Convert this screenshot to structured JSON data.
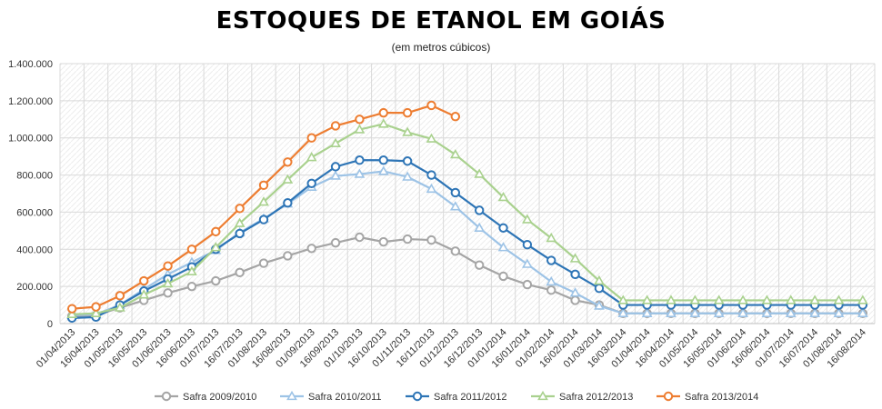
{
  "chart_data": {
    "type": "line",
    "title": "ESTOQUES DE ETANOL EM GOIÁS",
    "subtitle": "(em metros cúbicos)",
    "xlabel": "",
    "ylabel": "",
    "ylim": [
      0,
      1400000
    ],
    "y_ticks": [
      0,
      200000,
      400000,
      600000,
      800000,
      1000000,
      1200000,
      1400000
    ],
    "y_tick_labels": [
      "0",
      "200.000",
      "400.000",
      "600.000",
      "800.000",
      "1.000.000",
      "1.200.000",
      "1.400.000"
    ],
    "grid": true,
    "legend_position": "bottom",
    "categories": [
      "01/04/2013",
      "16/04/2013",
      "01/05/2013",
      "16/05/2013",
      "01/06/2013",
      "16/06/2013",
      "01/07/2013",
      "16/07/2013",
      "01/08/2013",
      "16/08/2013",
      "01/09/2013",
      "16/09/2013",
      "01/10/2013",
      "16/10/2013",
      "01/11/2013",
      "16/11/2013",
      "01/12/2013",
      "16/12/2013",
      "01/01/2014",
      "16/01/2014",
      "01/02/2014",
      "16/02/2014",
      "01/03/2014",
      "16/03/2014",
      "01/04/2014",
      "16/04/2014",
      "01/05/2014",
      "16/05/2014",
      "01/06/2014",
      "16/06/2014",
      "01/07/2014",
      "16/07/2014",
      "01/08/2014",
      "16/08/2014"
    ],
    "series": [
      {
        "name": "Safra 2009/2010",
        "color": "#a5a5a5",
        "marker": "circle",
        "values": [
          40000,
          45000,
          85000,
          125000,
          165000,
          200000,
          230000,
          275000,
          325000,
          365000,
          405000,
          435000,
          465000,
          440000,
          455000,
          450000,
          390000,
          315000,
          255000,
          210000,
          180000,
          125000,
          100000,
          55000,
          55000,
          55000,
          55000,
          55000,
          55000,
          55000,
          55000,
          55000,
          55000,
          55000
        ]
      },
      {
        "name": "Safra 2010/2011",
        "color": "#9dc3e6",
        "marker": "triangle",
        "values": [
          45000,
          50000,
          100000,
          185000,
          265000,
          330000,
          395000,
          490000,
          565000,
          645000,
          735000,
          795000,
          805000,
          820000,
          790000,
          725000,
          630000,
          515000,
          410000,
          320000,
          225000,
          165000,
          95000,
          55000,
          55000,
          55000,
          55000,
          55000,
          55000,
          55000,
          55000,
          55000,
          55000,
          55000
        ]
      },
      {
        "name": "Safra 2011/2012",
        "color": "#2e75b6",
        "marker": "circle",
        "values": [
          30000,
          35000,
          100000,
          175000,
          240000,
          305000,
          400000,
          485000,
          560000,
          650000,
          755000,
          845000,
          880000,
          880000,
          875000,
          800000,
          705000,
          610000,
          515000,
          425000,
          340000,
          265000,
          190000,
          100000,
          100000,
          100000,
          100000,
          100000,
          100000,
          100000,
          100000,
          100000,
          100000,
          100000
        ]
      },
      {
        "name": "Safra 2012/2013",
        "color": "#a9d18e",
        "marker": "triangle",
        "values": [
          50000,
          55000,
          85000,
          155000,
          215000,
          280000,
          410000,
          540000,
          655000,
          775000,
          895000,
          970000,
          1045000,
          1075000,
          1030000,
          995000,
          910000,
          805000,
          680000,
          560000,
          460000,
          350000,
          230000,
          125000,
          125000,
          125000,
          125000,
          125000,
          125000,
          125000,
          125000,
          125000,
          125000,
          125000
        ]
      },
      {
        "name": "Safra 2013/2014",
        "color": "#ed7d31",
        "marker": "circle",
        "values": [
          80000,
          90000,
          150000,
          230000,
          310000,
          400000,
          495000,
          620000,
          745000,
          870000,
          1000000,
          1065000,
          1100000,
          1135000,
          1135000,
          1175000,
          1115000,
          null,
          null,
          null,
          null,
          null,
          null,
          null,
          null,
          null,
          null,
          null,
          null,
          null,
          null,
          null,
          null,
          null
        ]
      }
    ]
  }
}
